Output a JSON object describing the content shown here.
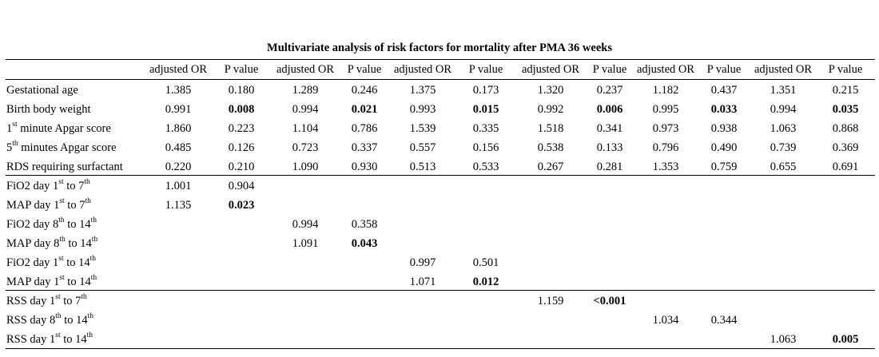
{
  "title": "Multivariate analysis of risk factors for mortality after PMA 36 weeks",
  "header": [
    "adjusted OR",
    "P value",
    "adjusted OR",
    "P value",
    "adjusted OR",
    "P value",
    "adjusted OR",
    "P value",
    "adjusted OR",
    "P value",
    "adjusted OR",
    "P value"
  ],
  "rows": [
    {
      "label": [
        {
          "t": "Gestational age"
        }
      ],
      "cells": [
        {
          "v": "1.385"
        },
        {
          "v": "0.180"
        },
        {
          "v": "1.289"
        },
        {
          "v": "0.246"
        },
        {
          "v": "1.375"
        },
        {
          "v": "0.173"
        },
        {
          "v": "1.320"
        },
        {
          "v": "0.237"
        },
        {
          "v": "1.182"
        },
        {
          "v": "0.437"
        },
        {
          "v": "1.351"
        },
        {
          "v": "0.215"
        }
      ]
    },
    {
      "label": [
        {
          "t": "Birth body weight"
        }
      ],
      "cells": [
        {
          "v": "0.991"
        },
        {
          "v": "0.008",
          "bold": true
        },
        {
          "v": "0.994"
        },
        {
          "v": "0.021",
          "bold": true
        },
        {
          "v": "0.993"
        },
        {
          "v": "0.015",
          "bold": true
        },
        {
          "v": "0.992"
        },
        {
          "v": "0.006",
          "bold": true
        },
        {
          "v": "0.995"
        },
        {
          "v": "0.033",
          "bold": true
        },
        {
          "v": "0.994"
        },
        {
          "v": "0.035",
          "bold": true
        }
      ]
    },
    {
      "label": [
        {
          "t": "1"
        },
        {
          "t": "st",
          "sup": true
        },
        {
          "t": " minute Apgar score"
        }
      ],
      "cells": [
        {
          "v": "1.860"
        },
        {
          "v": "0.223"
        },
        {
          "v": "1.104"
        },
        {
          "v": "0.786"
        },
        {
          "v": "1.539"
        },
        {
          "v": "0.335"
        },
        {
          "v": "1.518"
        },
        {
          "v": "0.341"
        },
        {
          "v": "0.973"
        },
        {
          "v": "0.938"
        },
        {
          "v": "1.063"
        },
        {
          "v": "0.868"
        }
      ]
    },
    {
      "label": [
        {
          "t": "5"
        },
        {
          "t": "th",
          "sup": true
        },
        {
          "t": " minutes Apgar score"
        }
      ],
      "cells": [
        {
          "v": "0.485"
        },
        {
          "v": "0.126"
        },
        {
          "v": "0.723"
        },
        {
          "v": "0.337"
        },
        {
          "v": "0.557"
        },
        {
          "v": "0.156"
        },
        {
          "v": "0.538"
        },
        {
          "v": "0.133"
        },
        {
          "v": "0.796"
        },
        {
          "v": "0.490"
        },
        {
          "v": "0.739"
        },
        {
          "v": "0.369"
        }
      ]
    },
    {
      "label": [
        {
          "t": "RDS requiring surfactant"
        }
      ],
      "cells": [
        {
          "v": "0.220"
        },
        {
          "v": "0.210"
        },
        {
          "v": "1.090"
        },
        {
          "v": "0.930"
        },
        {
          "v": "0.513"
        },
        {
          "v": "0.533"
        },
        {
          "v": "0.267"
        },
        {
          "v": "0.281"
        },
        {
          "v": "1.353"
        },
        {
          "v": "0.759"
        },
        {
          "v": "0.655"
        },
        {
          "v": "0.691"
        }
      ]
    },
    {
      "label": [
        {
          "t": "FiO2 day 1"
        },
        {
          "t": "st",
          "sup": true
        },
        {
          "t": " to 7"
        },
        {
          "t": "th",
          "sup": true
        }
      ],
      "cells": [
        {
          "v": "1.001"
        },
        {
          "v": "0.904"
        },
        {
          "v": ""
        },
        {
          "v": ""
        },
        {
          "v": ""
        },
        {
          "v": ""
        },
        {
          "v": ""
        },
        {
          "v": ""
        },
        {
          "v": ""
        },
        {
          "v": ""
        },
        {
          "v": ""
        },
        {
          "v": ""
        }
      ]
    },
    {
      "label": [
        {
          "t": "MAP day 1"
        },
        {
          "t": "st",
          "sup": true
        },
        {
          "t": " to 7"
        },
        {
          "t": "th",
          "sup": true
        }
      ],
      "cells": [
        {
          "v": "1.135"
        },
        {
          "v": "0.023",
          "bold": true
        },
        {
          "v": ""
        },
        {
          "v": ""
        },
        {
          "v": ""
        },
        {
          "v": ""
        },
        {
          "v": ""
        },
        {
          "v": ""
        },
        {
          "v": ""
        },
        {
          "v": ""
        },
        {
          "v": ""
        },
        {
          "v": ""
        }
      ]
    },
    {
      "label": [
        {
          "t": "FiO2 day 8"
        },
        {
          "t": "th",
          "sup": true
        },
        {
          "t": " to 14"
        },
        {
          "t": "th",
          "sup": true
        }
      ],
      "cells": [
        {
          "v": ""
        },
        {
          "v": ""
        },
        {
          "v": "0.994"
        },
        {
          "v": "0.358"
        },
        {
          "v": ""
        },
        {
          "v": ""
        },
        {
          "v": ""
        },
        {
          "v": ""
        },
        {
          "v": ""
        },
        {
          "v": ""
        },
        {
          "v": ""
        },
        {
          "v": ""
        }
      ]
    },
    {
      "label": [
        {
          "t": "MAP day 8"
        },
        {
          "t": "th",
          "sup": true
        },
        {
          "t": " to 14"
        },
        {
          "t": "th",
          "sup": true
        }
      ],
      "cells": [
        {
          "v": ""
        },
        {
          "v": ""
        },
        {
          "v": "1.091"
        },
        {
          "v": "0.043",
          "bold": true
        },
        {
          "v": ""
        },
        {
          "v": ""
        },
        {
          "v": ""
        },
        {
          "v": ""
        },
        {
          "v": ""
        },
        {
          "v": ""
        },
        {
          "v": ""
        },
        {
          "v": ""
        }
      ]
    },
    {
      "label": [
        {
          "t": "FiO2 day 1"
        },
        {
          "t": "st",
          "sup": true
        },
        {
          "t": " to 14"
        },
        {
          "t": "th",
          "sup": true
        }
      ],
      "cells": [
        {
          "v": ""
        },
        {
          "v": ""
        },
        {
          "v": ""
        },
        {
          "v": ""
        },
        {
          "v": "0.997"
        },
        {
          "v": "0.501"
        },
        {
          "v": ""
        },
        {
          "v": ""
        },
        {
          "v": ""
        },
        {
          "v": ""
        },
        {
          "v": ""
        },
        {
          "v": ""
        }
      ]
    },
    {
      "label": [
        {
          "t": "MAP day 1"
        },
        {
          "t": "st",
          "sup": true
        },
        {
          "t": " to 14"
        },
        {
          "t": "th",
          "sup": true
        }
      ],
      "cells": [
        {
          "v": ""
        },
        {
          "v": ""
        },
        {
          "v": ""
        },
        {
          "v": ""
        },
        {
          "v": "1.071"
        },
        {
          "v": "0.012",
          "bold": true
        },
        {
          "v": ""
        },
        {
          "v": ""
        },
        {
          "v": ""
        },
        {
          "v": ""
        },
        {
          "v": ""
        },
        {
          "v": ""
        }
      ]
    },
    {
      "label": [
        {
          "t": "RSS day 1"
        },
        {
          "t": "st",
          "sup": true
        },
        {
          "t": " to 7"
        },
        {
          "t": "th",
          "sup": true
        }
      ],
      "cells": [
        {
          "v": ""
        },
        {
          "v": ""
        },
        {
          "v": ""
        },
        {
          "v": ""
        },
        {
          "v": ""
        },
        {
          "v": ""
        },
        {
          "v": "1.159"
        },
        {
          "v": "<0.001",
          "bold": true
        },
        {
          "v": ""
        },
        {
          "v": ""
        },
        {
          "v": ""
        },
        {
          "v": ""
        }
      ]
    },
    {
      "label": [
        {
          "t": "RSS day 8"
        },
        {
          "t": "th",
          "sup": true
        },
        {
          "t": " to 14"
        },
        {
          "t": "th",
          "sup": true
        }
      ],
      "cells": [
        {
          "v": ""
        },
        {
          "v": ""
        },
        {
          "v": ""
        },
        {
          "v": ""
        },
        {
          "v": ""
        },
        {
          "v": ""
        },
        {
          "v": ""
        },
        {
          "v": ""
        },
        {
          "v": "1.034"
        },
        {
          "v": "0.344"
        },
        {
          "v": ""
        },
        {
          "v": ""
        }
      ]
    },
    {
      "label": [
        {
          "t": "RSS day 1"
        },
        {
          "t": "st",
          "sup": true
        },
        {
          "t": " to 14"
        },
        {
          "t": "th",
          "sup": true
        }
      ],
      "cells": [
        {
          "v": ""
        },
        {
          "v": ""
        },
        {
          "v": ""
        },
        {
          "v": ""
        },
        {
          "v": ""
        },
        {
          "v": ""
        },
        {
          "v": ""
        },
        {
          "v": ""
        },
        {
          "v": ""
        },
        {
          "v": ""
        },
        {
          "v": "1.063"
        },
        {
          "v": "0.005",
          "bold": true
        }
      ]
    }
  ]
}
